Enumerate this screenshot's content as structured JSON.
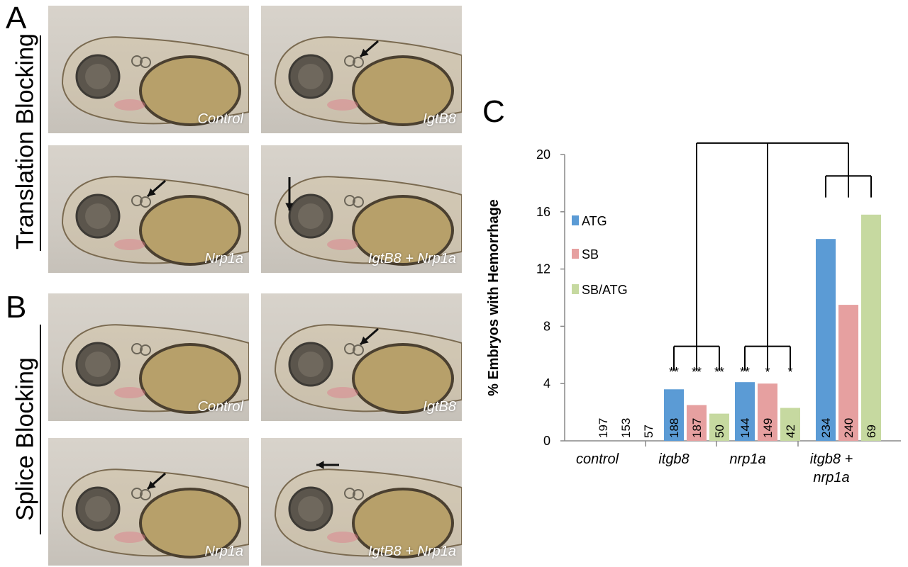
{
  "panels": {
    "A": {
      "letter": "A",
      "side_label": "Translation Blocking",
      "images": [
        {
          "caption": "Control",
          "arrow": false
        },
        {
          "caption": "IgtB8",
          "arrow": true,
          "arrow_dir": "down-left"
        },
        {
          "caption": "Nrp1a",
          "arrow": true,
          "arrow_dir": "down-left"
        },
        {
          "caption": "IgtB8 + Nrp1a",
          "arrow": true,
          "arrow_dir": "down"
        }
      ]
    },
    "B": {
      "letter": "B",
      "side_label": "Splice Blocking",
      "images": [
        {
          "caption": "Control",
          "arrow": false
        },
        {
          "caption": "IgtB8",
          "arrow": true,
          "arrow_dir": "down-left"
        },
        {
          "caption": "Nrp1a",
          "arrow": true,
          "arrow_dir": "down-left"
        },
        {
          "caption": "IgtB8 + Nrp1a",
          "arrow": true,
          "arrow_dir": "left"
        }
      ]
    },
    "C": {
      "letter": "C"
    }
  },
  "chart_data": {
    "type": "bar",
    "ylabel": "% Embryos with Hemorrhage",
    "xlabel": "",
    "ylim": [
      0,
      20
    ],
    "yticks": [
      0,
      4,
      8,
      12,
      16,
      20
    ],
    "categories": [
      "control",
      "itgb8",
      "nrp1a",
      "itgb8 + nrp1a"
    ],
    "category_lines": [
      [
        "control"
      ],
      [
        "itgb8"
      ],
      [
        "nrp1a"
      ],
      [
        "itgb8 +",
        "nrp1a"
      ]
    ],
    "series": [
      {
        "name": "ATG",
        "color": "#5b9bd5",
        "values": [
          0,
          3.6,
          4.1,
          14.1
        ],
        "n": [
          "197",
          "188",
          "144",
          "234"
        ]
      },
      {
        "name": "SB",
        "color": "#e6a0a0",
        "values": [
          0,
          2.5,
          4.0,
          9.5
        ],
        "n": [
          "153",
          "187",
          "149",
          "240"
        ]
      },
      {
        "name": "SB/ATG",
        "color": "#c6d9a0",
        "values": [
          0,
          1.9,
          2.3,
          15.8
        ],
        "n": [
          "57",
          "50",
          "42",
          "69"
        ]
      }
    ],
    "significance": [
      [
        "",
        "",
        ""
      ],
      [
        "**",
        "**",
        "**"
      ],
      [
        "**",
        "*",
        "*"
      ],
      [
        "",
        "",
        ""
      ]
    ],
    "legend_position": "left"
  }
}
